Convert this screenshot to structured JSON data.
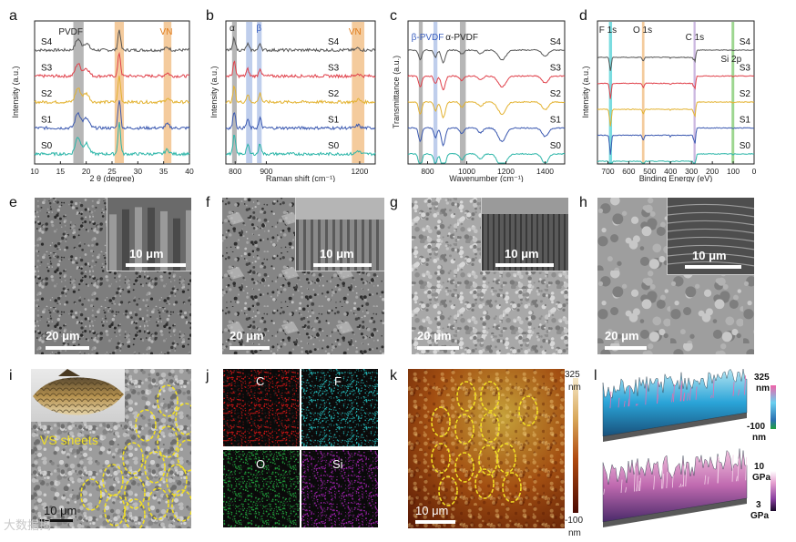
{
  "panels": {
    "a": {
      "letter": "a",
      "xlabel": "2 θ (degree)",
      "ylabel": "Intensity (a.u.)",
      "x_ticks": [
        "10",
        "15",
        "20",
        "25",
        "30",
        "35",
        "40"
      ],
      "samples": [
        "S4",
        "S3",
        "S2",
        "S1",
        "S0"
      ],
      "bands": [
        {
          "label": "PVDF",
          "color": "#9e9e9e",
          "label_color": "#222222"
        },
        {
          "label": "",
          "color": "#f0b97c"
        },
        {
          "label": "VN",
          "color": "#f0b97c",
          "label_color": "#e07b1a"
        }
      ]
    },
    "b": {
      "letter": "b",
      "xlabel": "Raman shift (cm⁻¹)",
      "ylabel": "Intensity (a.u.)",
      "x_ticks": [
        "800",
        "900",
        "1200"
      ],
      "samples": [
        "S4",
        "S3",
        "S2",
        "S1",
        "S0"
      ],
      "bands": [
        {
          "label": "α",
          "color": "#9e9e9e",
          "label_color": "#222222"
        },
        {
          "label": "",
          "color": "#a9bde6"
        },
        {
          "label": "β",
          "color": "#a9bde6",
          "label_color": "#3a5fbf"
        },
        {
          "label": "VN",
          "color": "#f0b97c",
          "label_color": "#e07b1a"
        }
      ]
    },
    "c": {
      "letter": "c",
      "xlabel": "Wavenumber (cm⁻¹)",
      "ylabel": "Transmittance (a.u.)",
      "x_ticks": [
        "800",
        "1000",
        "1200",
        "1400"
      ],
      "samples": [
        "S4",
        "S3",
        "S2",
        "S1",
        "S0"
      ],
      "bands": [
        {
          "label": "",
          "color": "#9e9e9e"
        },
        {
          "label": "β-PVDF",
          "color": "#a9bde6",
          "label_color": "#3a5fbf"
        },
        {
          "label": "α-PVDF",
          "color": "#9e9e9e",
          "label_color": "#222222"
        }
      ]
    },
    "d": {
      "letter": "d",
      "xlabel": "Binding Energy (eV)",
      "ylabel": "Intensity (a.u.)",
      "x_ticks": [
        "700",
        "600",
        "500",
        "400",
        "300",
        "200",
        "100",
        "0"
      ],
      "samples": [
        "S4",
        "S3",
        "S2",
        "S1",
        "S0"
      ],
      "bands": [
        {
          "label": "F 1s",
          "color": "#4fd0d6",
          "label_color": "#222222"
        },
        {
          "label": "O 1s",
          "color": "#f0b97c",
          "label_color": "#222222"
        },
        {
          "label": "C 1s",
          "color": "#b99fd6",
          "label_color": "#222222"
        },
        {
          "label": "Si 2p",
          "color": "#7cc86b",
          "label_color": "#222222"
        }
      ]
    },
    "e": {
      "letter": "e",
      "scale_main": "20 μm",
      "scale_inset": "10 μm"
    },
    "f": {
      "letter": "f",
      "scale_main": "20 μm",
      "scale_inset": "10 μm"
    },
    "g": {
      "letter": "g",
      "scale_main": "20 μm",
      "scale_inset": "10 μm"
    },
    "h": {
      "letter": "h",
      "scale_main": "20 μm",
      "scale_inset": "10 μm"
    },
    "i": {
      "letter": "i",
      "annotation": "VS sheets",
      "scale": "10 μm",
      "watermark": "大数据揭"
    },
    "j": {
      "letter": "j",
      "maps": [
        {
          "element": "C",
          "color": "#c41414"
        },
        {
          "element": "F",
          "color": "#22b3b3"
        },
        {
          "element": "O",
          "color": "#1f9e3a"
        },
        {
          "element": "Si",
          "color": "#9a1fa8"
        }
      ]
    },
    "k": {
      "letter": "k",
      "scale": "10 μm",
      "cbar_max": "325",
      "cbar_min": "-100",
      "cbar_unit": "nm"
    },
    "l": {
      "letter": "l",
      "top_max": "325",
      "top_min": "-100",
      "top_unit": "nm",
      "bottom_max": "10",
      "bottom_min": "3",
      "bottom_unit": "GPa"
    }
  },
  "colors": {
    "S4": "#555555",
    "S3": "#e0404a",
    "S2": "#e3b230",
    "S1": "#3a58b0",
    "S0": "#2bb5a8"
  }
}
